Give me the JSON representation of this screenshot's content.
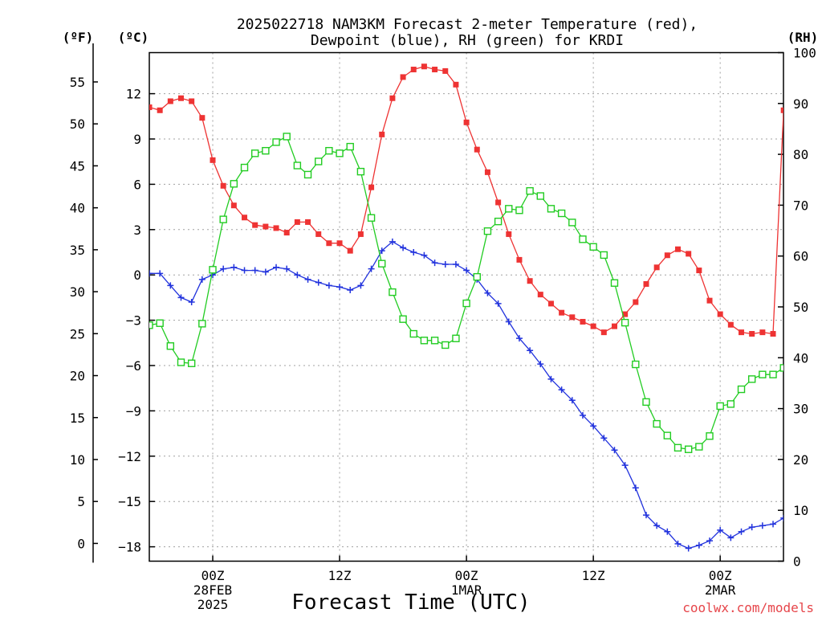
{
  "title_line1": "2025022718 NAM3KM Forecast 2-meter Temperature (red),",
  "title_line2": "Dewpoint (blue), RH (green) for KRDI",
  "credit": "coolwx.com/models",
  "chart_data": {
    "type": "line",
    "title": "2025022718 NAM3KM Forecast 2-meter Temperature (red), Dewpoint (blue), RH (green) for KRDI",
    "xlabel": "Forecast Time (UTC)",
    "x_unit_note": "forecast hour from 2025-02-27 18Z, one point per hour",
    "x_hours": [
      0,
      1,
      2,
      3,
      4,
      5,
      6,
      7,
      8,
      9,
      10,
      11,
      12,
      13,
      14,
      15,
      16,
      17,
      18,
      19,
      20,
      21,
      22,
      23,
      24,
      25,
      26,
      27,
      28,
      29,
      30,
      31,
      32,
      33,
      34,
      35,
      36,
      37,
      38,
      39,
      40,
      41,
      42,
      43,
      44,
      45,
      46,
      47,
      48,
      49,
      50,
      51,
      52,
      53,
      54,
      55,
      56,
      57,
      58,
      59,
      60
    ],
    "x_ticks": [
      {
        "hour": 6,
        "lines": [
          "00Z",
          "28FEB",
          "2025"
        ]
      },
      {
        "hour": 18,
        "lines": [
          "12Z"
        ]
      },
      {
        "hour": 30,
        "lines": [
          "00Z",
          "1MAR"
        ]
      },
      {
        "hour": 42,
        "lines": [
          "12Z"
        ]
      },
      {
        "hour": 54,
        "lines": [
          "00Z",
          "2MAR"
        ]
      }
    ],
    "axes": {
      "left_f": {
        "label": "(ºF)",
        "range": [
          0,
          55
        ],
        "ticks": [
          0,
          5,
          10,
          15,
          20,
          25,
          30,
          35,
          40,
          45,
          50,
          55
        ]
      },
      "left_c": {
        "label": "(ºC)",
        "range": [
          -18,
          12
        ],
        "ticks": [
          -18,
          -15,
          -12,
          -9,
          -6,
          -3,
          0,
          3,
          6,
          9,
          12
        ]
      },
      "right_rh": {
        "label": "(RH)",
        "range": [
          0,
          100
        ],
        "ticks": [
          0,
          10,
          20,
          30,
          40,
          50,
          60,
          70,
          80,
          90,
          100
        ]
      }
    },
    "grid": true,
    "series": [
      {
        "name": "Temperature",
        "color": "#ee3333",
        "marker": "filled-square",
        "axis": "left_c",
        "values": [
          11.1,
          10.9,
          11.5,
          11.7,
          11.5,
          10.4,
          7.6,
          5.9,
          4.6,
          3.8,
          3.3,
          3.2,
          3.1,
          2.8,
          3.5,
          3.5,
          2.7,
          2.1,
          2.1,
          1.6,
          2.7,
          5.8,
          9.3,
          11.7,
          13.1,
          13.6,
          13.8,
          13.6,
          13.5,
          12.6,
          10.1,
          8.3,
          6.8,
          4.8,
          2.7,
          1.0,
          -0.4,
          -1.3,
          -1.9,
          -2.5,
          -2.8,
          -3.1,
          -3.4,
          -3.8,
          -3.4,
          -2.6,
          -1.8,
          -0.6,
          0.5,
          1.3,
          1.7,
          1.4,
          0.3,
          -1.7,
          -2.6,
          -3.3,
          -3.8,
          -3.9,
          -3.8,
          -3.9,
          10.9
        ]
      },
      {
        "name": "Dewpoint",
        "color": "#2233dd",
        "marker": "plus",
        "axis": "left_c",
        "values": [
          0.1,
          0.1,
          -0.7,
          -1.5,
          -1.8,
          -0.3,
          0.0,
          0.4,
          0.5,
          0.3,
          0.3,
          0.2,
          0.5,
          0.4,
          0.0,
          -0.3,
          -0.5,
          -0.7,
          -0.8,
          -1.0,
          -0.7,
          0.4,
          1.6,
          2.2,
          1.8,
          1.5,
          1.3,
          0.8,
          0.7,
          0.7,
          0.3,
          -0.3,
          -1.2,
          -1.9,
          -3.1,
          -4.2,
          -5.0,
          -5.9,
          -6.9,
          -7.6,
          -8.3,
          -9.3,
          -10.0,
          -10.8,
          -11.6,
          -12.6,
          -14.1,
          -15.9,
          -16.6,
          -17.0,
          -17.8,
          -18.1,
          -17.9,
          -17.6,
          -16.9,
          -17.4,
          -17.0,
          -16.7,
          -16.6,
          -16.5,
          -16.1
        ]
      },
      {
        "name": "RH",
        "color": "#22cc22",
        "marker": "open-square",
        "axis": "right_rh",
        "values": [
          46.4,
          46.8,
          42.3,
          39.1,
          38.9,
          46.7,
          57.3,
          67.2,
          74.2,
          77.4,
          80.2,
          80.7,
          82.4,
          83.5,
          77.8,
          76.0,
          78.6,
          80.7,
          80.2,
          81.5,
          76.6,
          67.5,
          58.5,
          52.9,
          47.6,
          44.7,
          43.4,
          43.4,
          42.5,
          43.8,
          50.7,
          55.9,
          64.9,
          66.8,
          69.3,
          69.0,
          72.8,
          71.8,
          69.3,
          68.4,
          66.6,
          63.3,
          61.8,
          60.2,
          54.7,
          46.9,
          38.7,
          31.3,
          27.0,
          24.7,
          22.3,
          22.0,
          22.5,
          24.6,
          30.5,
          30.9,
          33.8,
          35.8,
          36.7,
          36.7,
          38.0
        ]
      }
    ]
  }
}
